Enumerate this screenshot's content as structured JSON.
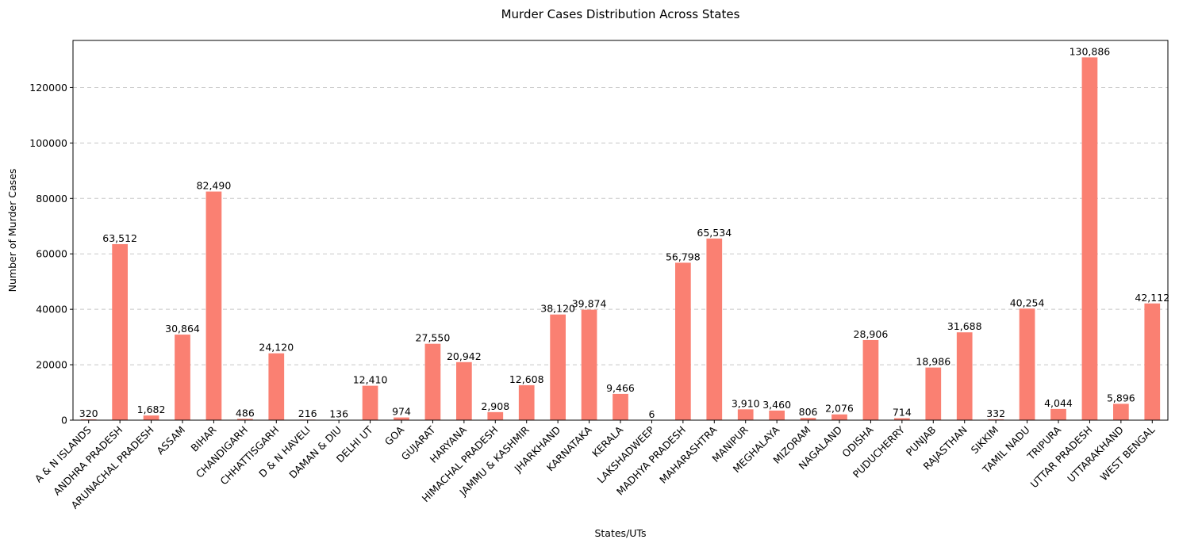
{
  "chart_data": {
    "type": "bar",
    "title": "Murder Cases Distribution Across States",
    "xlabel": "States/UTs",
    "ylabel": "Number of Murder Cases",
    "ylim": [
      0,
      137000
    ],
    "yticks": [
      0,
      20000,
      40000,
      60000,
      80000,
      100000,
      120000
    ],
    "grid": "y-dashed",
    "bar_color": "#fa8072",
    "categories": [
      "A & N ISLANDS",
      "ANDHRA PRADESH",
      "ARUNACHAL PRADESH",
      "ASSAM",
      "BIHAR",
      "CHANDIGARH",
      "CHHATTISGARH",
      "D & N HAVELI",
      "DAMAN & DIU",
      "DELHI UT",
      "GOA",
      "GUJARAT",
      "HARYANA",
      "HIMACHAL PRADESH",
      "JAMMU & KASHMIR",
      "JHARKHAND",
      "KARNATAKA",
      "KERALA",
      "LAKSHADWEEP",
      "MADHYA PRADESH",
      "MAHARASHTRA",
      "MANIPUR",
      "MEGHALAYA",
      "MIZORAM",
      "NAGALAND",
      "ODISHA",
      "PUDUCHERRY",
      "PUNJAB",
      "RAJASTHAN",
      "SIKKIM",
      "TAMIL NADU",
      "TRIPURA",
      "UTTAR PRADESH",
      "UTTARAKHAND",
      "WEST BENGAL"
    ],
    "values": [
      320,
      63512,
      1682,
      30864,
      82490,
      486,
      24120,
      216,
      136,
      12410,
      974,
      27550,
      20942,
      2908,
      12608,
      38120,
      39874,
      9466,
      6,
      56798,
      65534,
      3910,
      3460,
      806,
      2076,
      28906,
      714,
      18986,
      31688,
      332,
      40254,
      4044,
      130886,
      5896,
      42112
    ],
    "value_labels": [
      "320",
      "63,512",
      "1,682",
      "30,864",
      "82,490",
      "486",
      "24,120",
      "216",
      "136",
      "12,410",
      "974",
      "27,550",
      "20,942",
      "2,908",
      "12,608",
      "38,120",
      "39,874",
      "9,466",
      "6",
      "56,798",
      "65,534",
      "3,910",
      "3,460",
      "806",
      "2,076",
      "28,906",
      "714",
      "18,986",
      "31,688",
      "332",
      "40,254",
      "4,044",
      "130,886",
      "5,896",
      "42,112"
    ]
  }
}
